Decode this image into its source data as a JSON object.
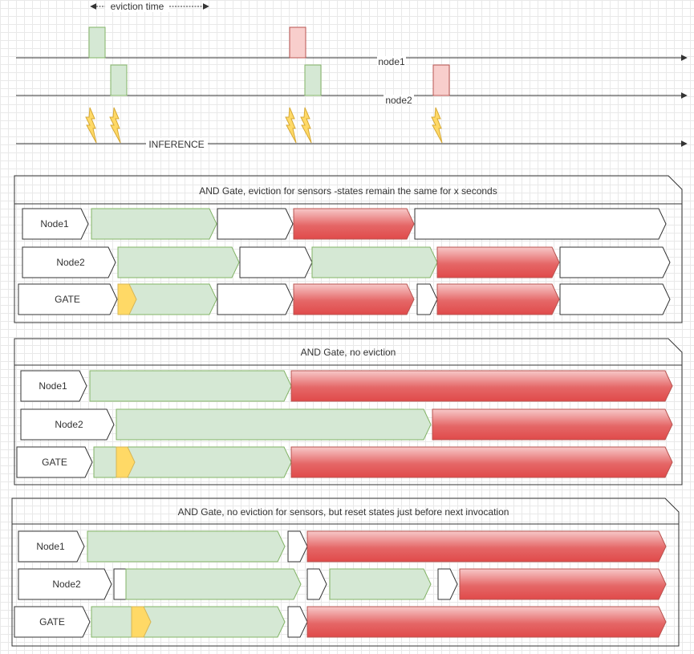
{
  "timeline": {
    "eviction_label": "eviction time",
    "rows": [
      {
        "label": "node1",
        "pulses": [
          "green",
          "red"
        ]
      },
      {
        "label": "node2",
        "pulses": [
          "green",
          "green",
          "red"
        ]
      },
      {
        "label": "INFERENCE",
        "bolts": 5
      }
    ]
  },
  "colors": {
    "green": "#d5e8d4",
    "green_border": "#82b366",
    "red": "#f8cecc",
    "red_border": "#b85450",
    "red_strong": "#e04a4a",
    "yellow": "#ffd966",
    "yellow_border": "#d6b656",
    "axis": "#333333"
  },
  "panels": [
    {
      "title": "AND Gate, eviction for sensors -states remain the same for x seconds",
      "rows": [
        {
          "label": "Node1",
          "segments": [
            "green",
            "white",
            "red",
            "white"
          ]
        },
        {
          "label": "Node2",
          "segments": [
            "green",
            "white",
            "green",
            "red",
            "white"
          ]
        },
        {
          "label": "GATE",
          "segments": [
            "yellow",
            "green",
            "white",
            "red",
            "white",
            "red",
            "white"
          ]
        }
      ]
    },
    {
      "title": "AND Gate, no eviction",
      "rows": [
        {
          "label": "Node1",
          "segments": [
            "green",
            "red"
          ]
        },
        {
          "label": "Node2",
          "segments": [
            "green",
            "red"
          ]
        },
        {
          "label": "GATE",
          "segments": [
            "green",
            "yellow",
            "green",
            "red"
          ]
        }
      ]
    },
    {
      "title": "AND Gate, no eviction for sensors, but reset states just before next invocation",
      "rows": [
        {
          "label": "Node1",
          "segments": [
            "green",
            "white",
            "red"
          ]
        },
        {
          "label": "Node2",
          "segments": [
            "white",
            "green",
            "white",
            "green",
            "white",
            "red"
          ]
        },
        {
          "label": "GATE",
          "segments": [
            "green",
            "yellow",
            "green",
            "white",
            "red"
          ]
        }
      ]
    }
  ]
}
